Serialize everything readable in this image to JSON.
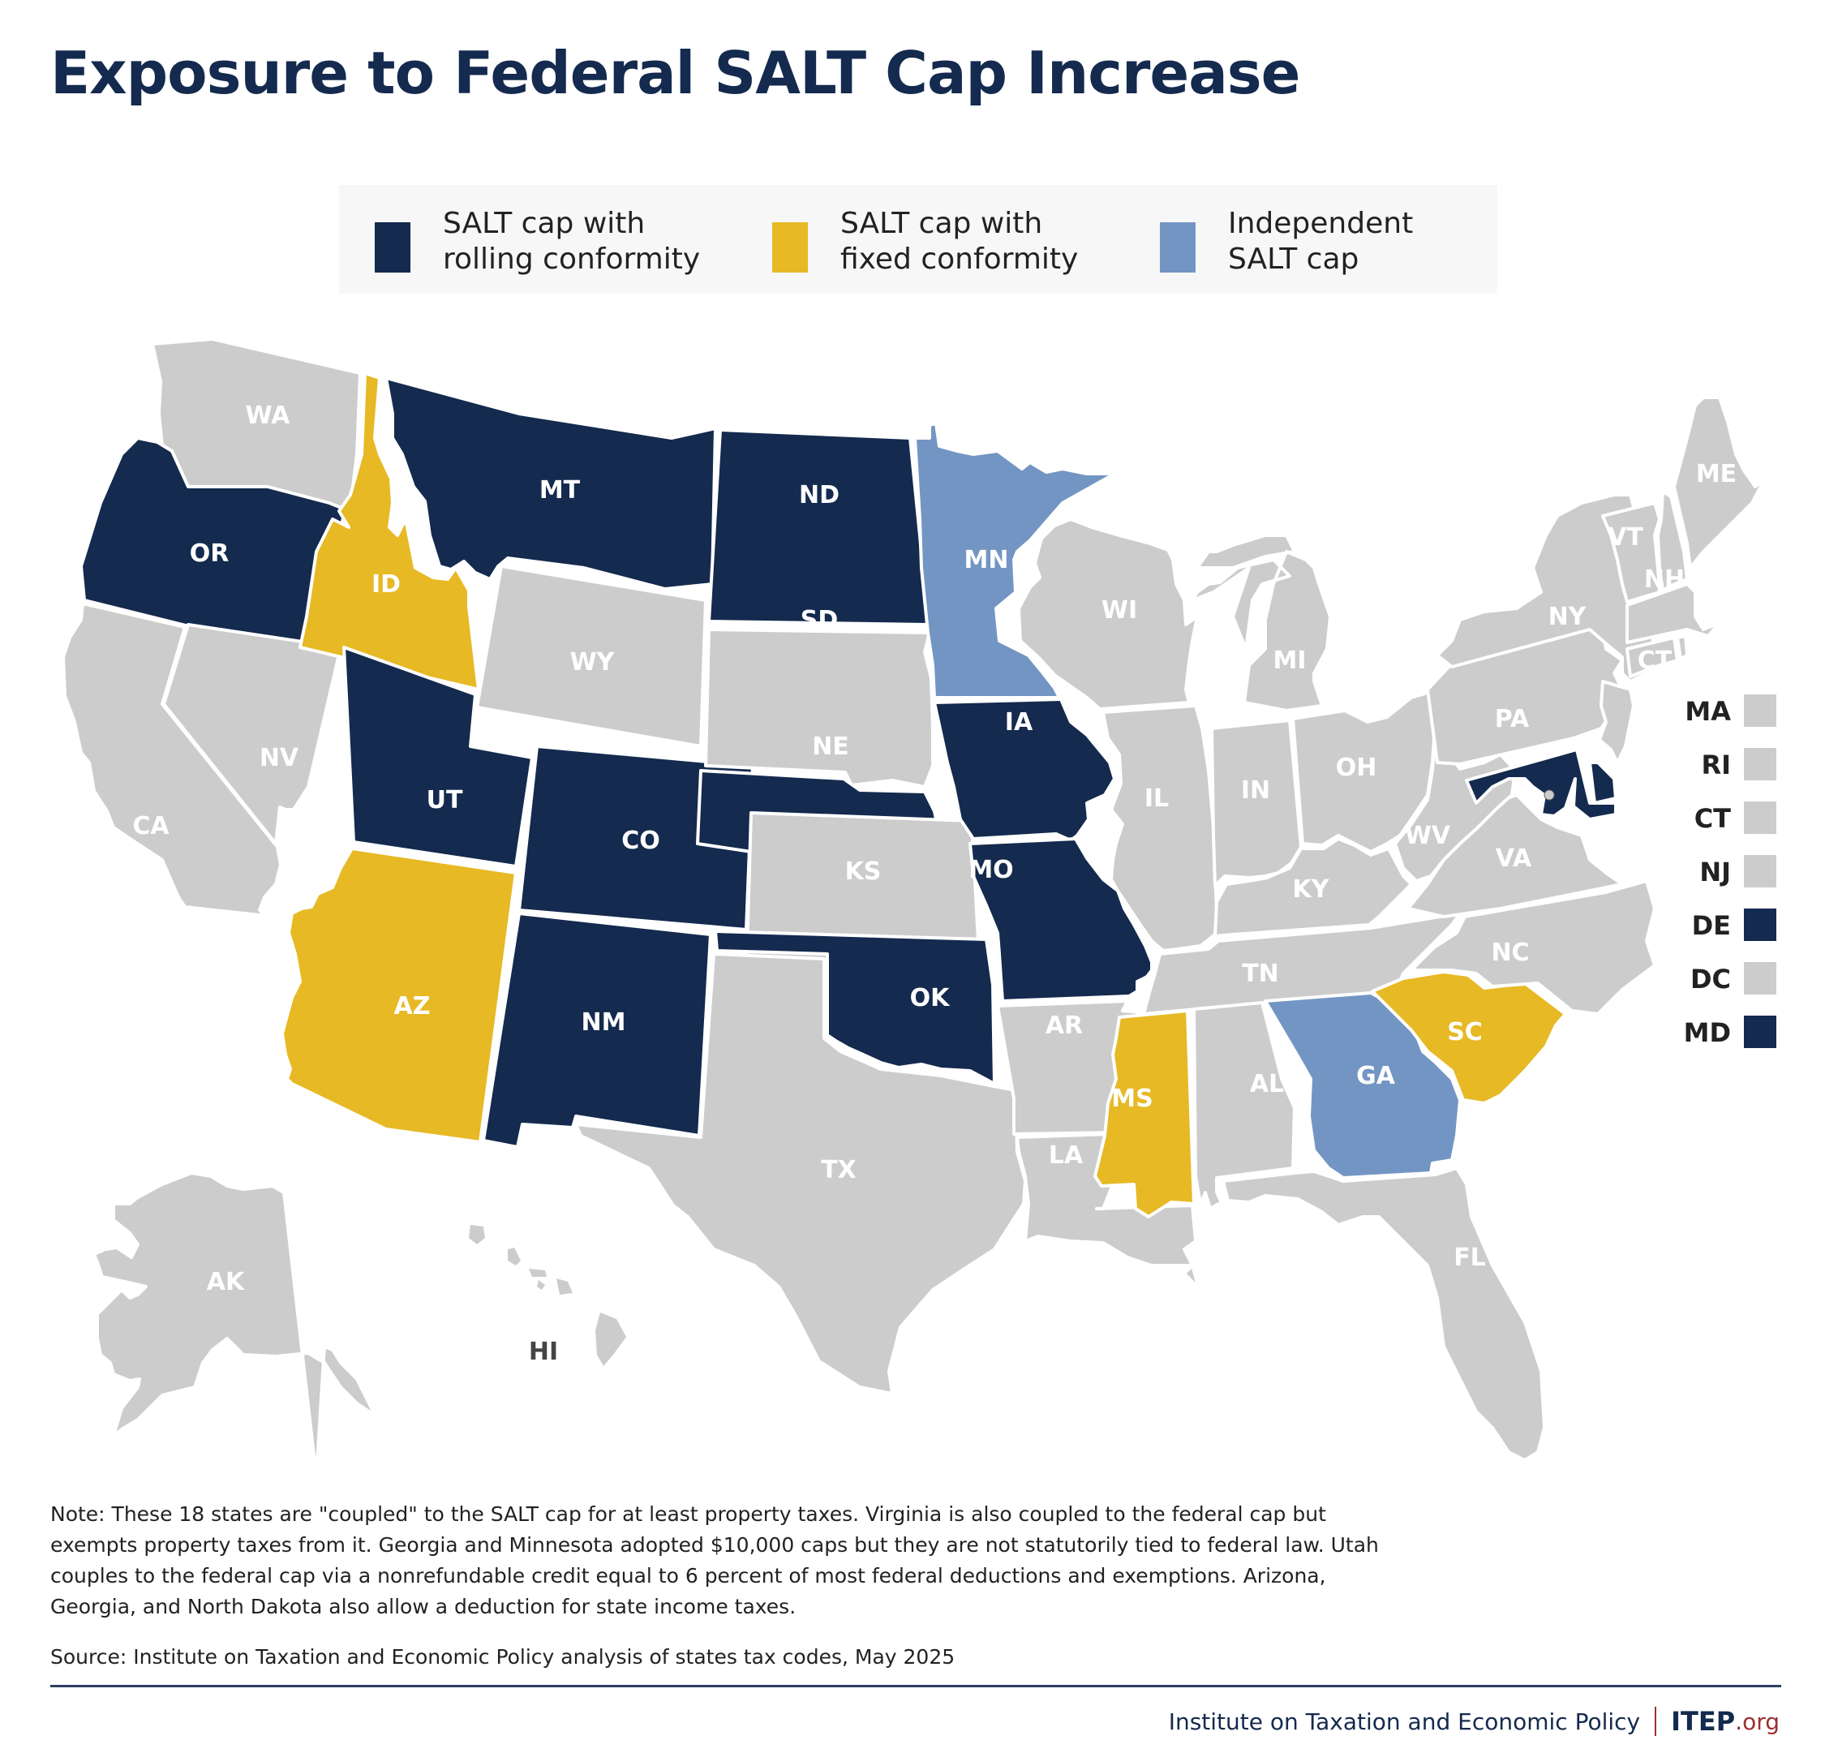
{
  "title": "Exposure to Federal SALT Cap Increase",
  "legend": [
    {
      "key": "rolling",
      "label": "SALT cap with\nrolling conformity",
      "color": "#142a4e"
    },
    {
      "key": "fixed",
      "label": "SALT cap with\nfixed conformity",
      "color": "#e6b925"
    },
    {
      "key": "independent",
      "label": "Independent\nSALT cap",
      "color": "#7395c3"
    }
  ],
  "colors": {
    "none": "#cccccc",
    "rolling": "#142a4e",
    "fixed": "#e6b925",
    "independent": "#7395c3",
    "hi_label": "#444444"
  },
  "states": {
    "WA": "none",
    "OR": "rolling",
    "CA": "none",
    "NV": "none",
    "ID": "fixed",
    "MT": "rolling",
    "WY": "none",
    "UT": "rolling",
    "AZ": "fixed",
    "CO": "rolling",
    "NM": "rolling",
    "ND": "rolling",
    "SD": "none",
    "NE": "rolling",
    "KS": "none",
    "OK": "rolling",
    "TX": "none",
    "MN": "independent",
    "IA": "rolling",
    "MO": "rolling",
    "AR": "none",
    "LA": "none",
    "WI": "none",
    "IL": "none",
    "MI": "none",
    "IN": "none",
    "OH": "none",
    "KY": "none",
    "TN": "none",
    "MS": "fixed",
    "AL": "none",
    "GA": "independent",
    "FL": "none",
    "SC": "fixed",
    "NC": "none",
    "VA": "none",
    "WV": "none",
    "PA": "none",
    "NY": "none",
    "VT": "none",
    "NH": "none",
    "ME": "none",
    "MA": "none",
    "RI": "none",
    "CT": "none",
    "NJ": "none",
    "DE": "rolling",
    "MD": "rolling",
    "DC": "none",
    "AK": "none",
    "HI": "none"
  },
  "small_states": [
    {
      "abbr": "MA",
      "category": "none"
    },
    {
      "abbr": "RI",
      "category": "none"
    },
    {
      "abbr": "CT",
      "category": "none"
    },
    {
      "abbr": "NJ",
      "category": "none"
    },
    {
      "abbr": "DE",
      "category": "rolling"
    },
    {
      "abbr": "DC",
      "category": "none"
    },
    {
      "abbr": "MD",
      "category": "rolling"
    }
  ],
  "note": "Note: These 18 states are \"coupled\" to the SALT cap for at least property taxes. Virginia is also coupled to the federal cap but exempts property taxes from it. Georgia and Minnesota adopted $10,000 caps but they are not statutorily tied to federal law. Utah couples to the federal cap via a nonrefundable credit equal to 6 percent of most federal deductions and exemptions. Arizona, Georgia, and North Dakota also allow a deduction for state income taxes.",
  "source": "Source: Institute on Taxation and Economic Policy analysis of states tax codes, May 2025",
  "footer": {
    "org": "Institute on Taxation and Economic Policy",
    "logo_main": "ITEP",
    "logo_suffix": ".org"
  }
}
